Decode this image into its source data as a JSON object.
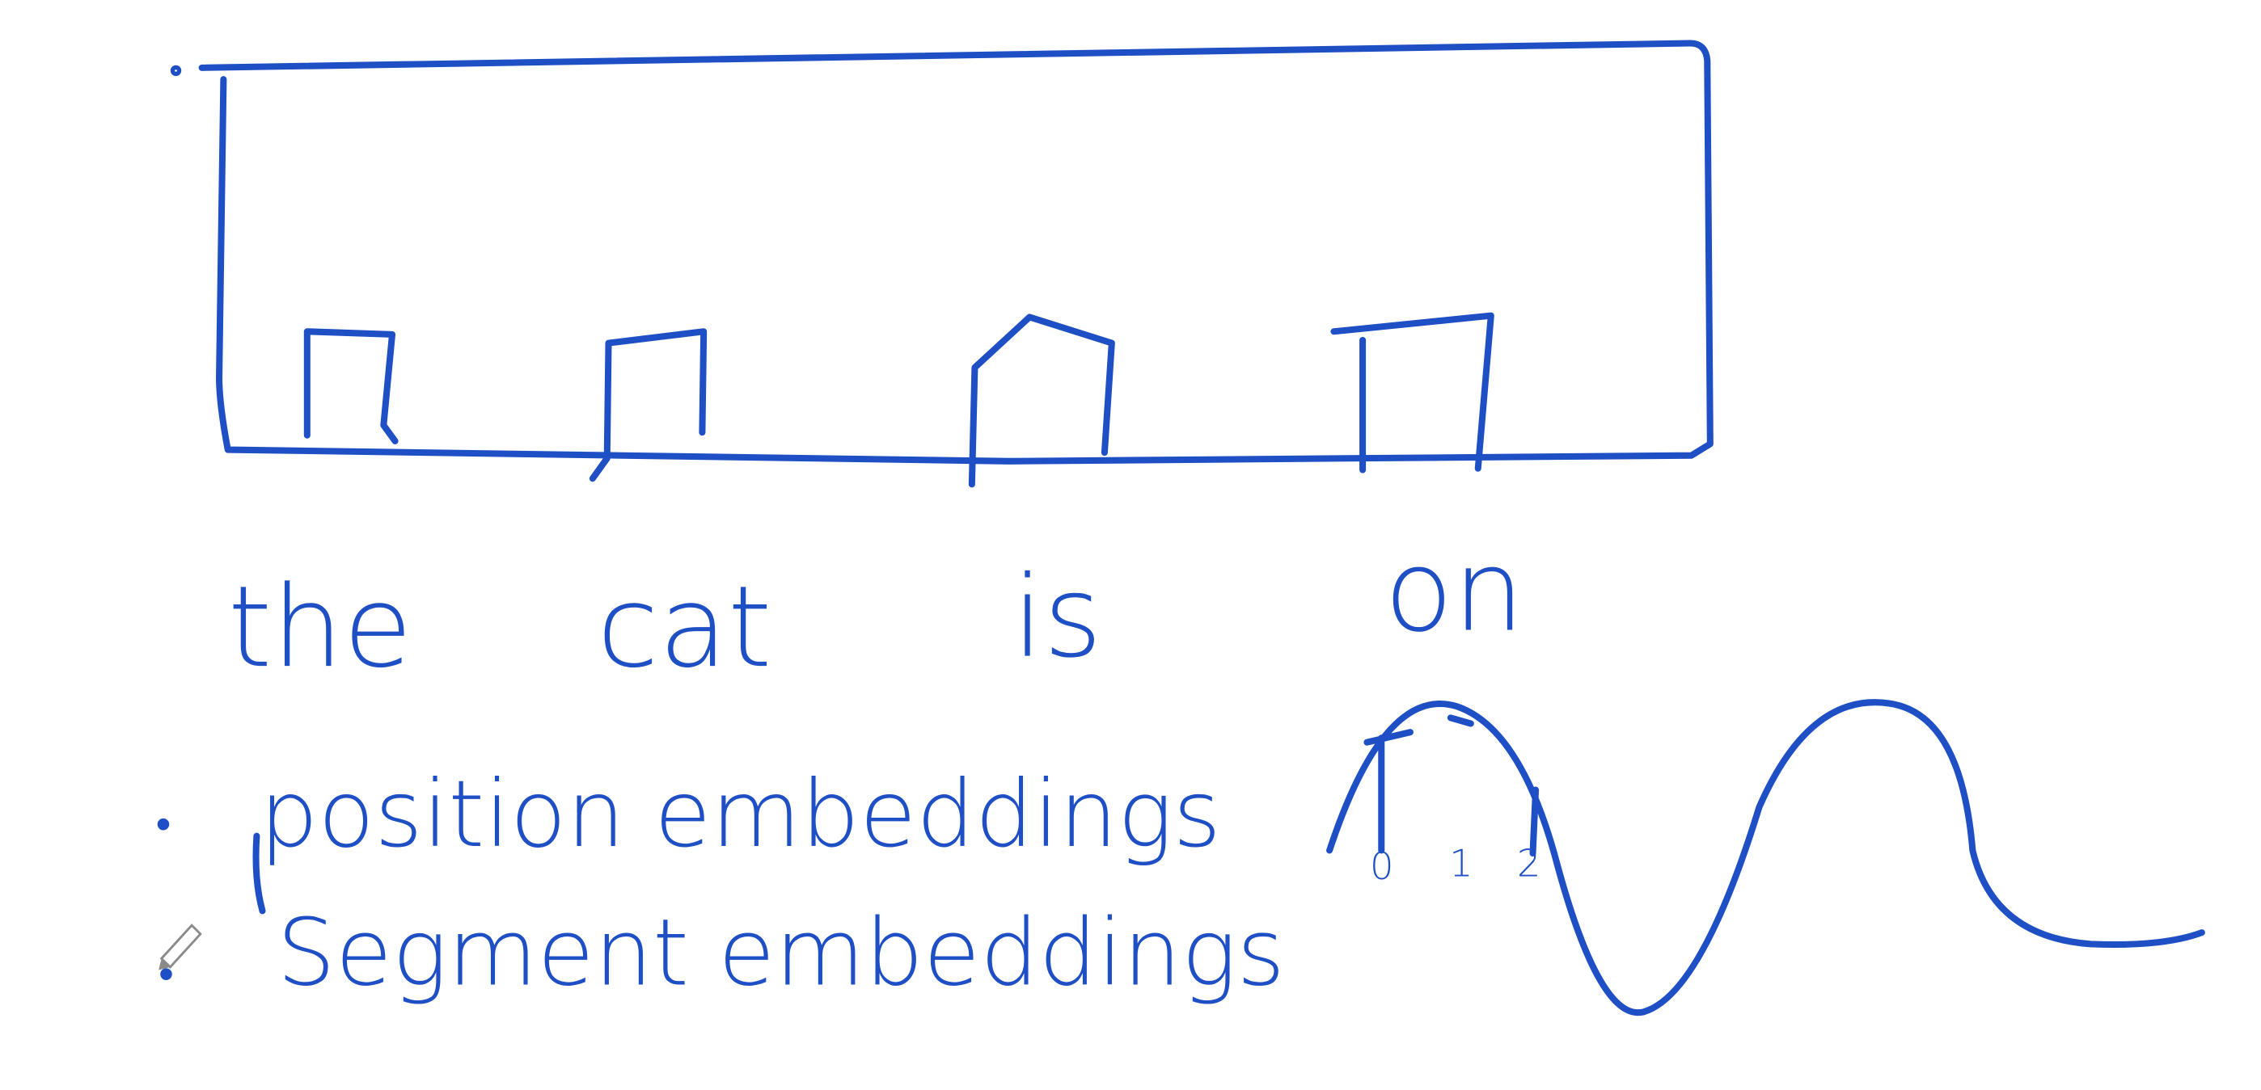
{
  "colors": {
    "ink": "#1f4fc4",
    "background": "#ffffff",
    "pencil": "#8a8a8a"
  },
  "words": [
    "the",
    "cat",
    "is",
    "on"
  ],
  "list_items": [
    {
      "label": "position embeddings",
      "marker": "•"
    },
    {
      "label": "Segment embeddings",
      "marker": "•"
    }
  ],
  "wave_labels": [
    "0",
    "1",
    "2"
  ],
  "cursor_icon": "pencil-icon"
}
